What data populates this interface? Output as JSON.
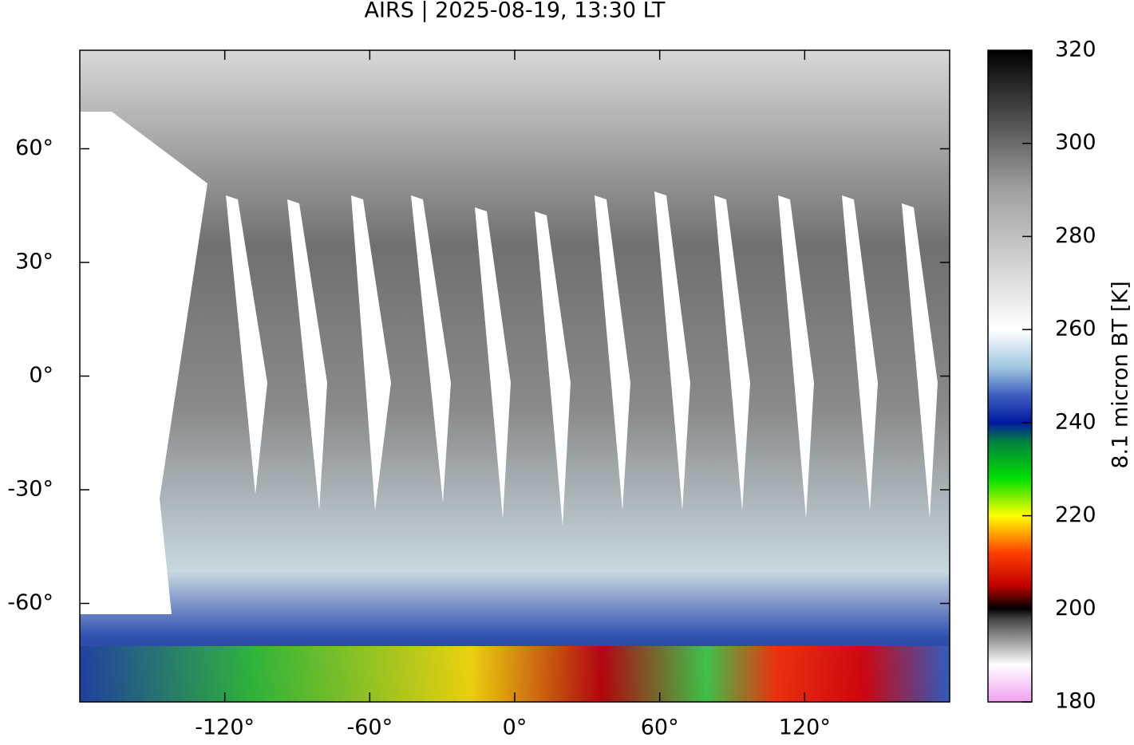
{
  "chart_data": {
    "type": "map",
    "title": "AIRS | 2025-08-19, 13:30 LT",
    "xlim": [
      -180,
      180
    ],
    "ylim": [
      -86,
      86
    ],
    "xticks": [
      {
        "value": -120,
        "label": "-120°"
      },
      {
        "value": -60,
        "label": "-60°"
      },
      {
        "value": 0,
        "label": "0°"
      },
      {
        "value": 60,
        "label": "60°"
      },
      {
        "value": 120,
        "label": "120°"
      }
    ],
    "yticks": [
      {
        "value": 60,
        "label": "60°"
      },
      {
        "value": 30,
        "label": "30°"
      },
      {
        "value": 0,
        "label": "0°"
      },
      {
        "value": -30,
        "label": "-30°"
      },
      {
        "value": -60,
        "label": "-60°"
      }
    ],
    "colorbar": {
      "label": "8.1 micron BT [K]",
      "lim": [
        180,
        320
      ],
      "ticks": [
        180,
        200,
        220,
        240,
        260,
        280,
        300,
        320
      ],
      "colormap": [
        {
          "value": 180,
          "color": "#f0a0f0"
        },
        {
          "value": 188,
          "color": "#ffffff"
        },
        {
          "value": 198,
          "color": "#404040"
        },
        {
          "value": 200,
          "color": "#000000"
        },
        {
          "value": 205,
          "color": "#c00000"
        },
        {
          "value": 212,
          "color": "#ff4000"
        },
        {
          "value": 220,
          "color": "#ffff00"
        },
        {
          "value": 228,
          "color": "#00e000"
        },
        {
          "value": 236,
          "color": "#008040"
        },
        {
          "value": 240,
          "color": "#0018a0"
        },
        {
          "value": 246,
          "color": "#4060c0"
        },
        {
          "value": 252,
          "color": "#a0c8e0"
        },
        {
          "value": 260,
          "color": "#ffffff"
        },
        {
          "value": 290,
          "color": "#a0a0a0"
        },
        {
          "value": 320,
          "color": "#000000"
        }
      ]
    }
  }
}
